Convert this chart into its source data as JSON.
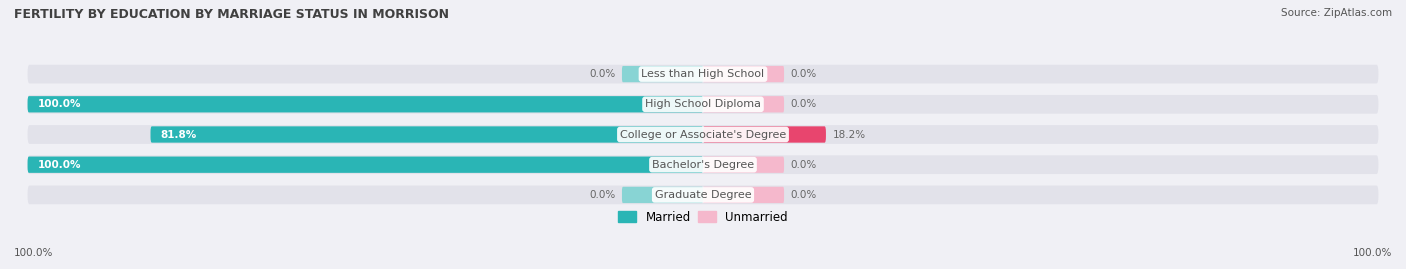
{
  "title": "FERTILITY BY EDUCATION BY MARRIAGE STATUS IN MORRISON",
  "source": "Source: ZipAtlas.com",
  "categories": [
    "Less than High School",
    "High School Diploma",
    "College or Associate's Degree",
    "Bachelor's Degree",
    "Graduate Degree"
  ],
  "married_values": [
    0.0,
    100.0,
    81.8,
    100.0,
    0.0
  ],
  "unmarried_values": [
    0.0,
    0.0,
    18.2,
    0.0,
    0.0
  ],
  "married_color_full": "#2ab5b5",
  "married_color_light": "#88d4d4",
  "unmarried_color_light": "#f5b8cc",
  "unmarried_color_dark": "#e8456e",
  "bg_color": "#f0f0f5",
  "bar_bg_color": "#e2e2ea",
  "title_color": "#404040",
  "label_color": "#555555",
  "value_color_inside": "#ffffff",
  "value_color_outside": "#666666",
  "bar_height": 0.62,
  "figsize": [
    14.06,
    2.69
  ],
  "dpi": 100,
  "legend_married": "Married",
  "legend_unmarried": "Unmarried",
  "axis_label_left": "100.0%",
  "axis_label_right": "100.0%"
}
